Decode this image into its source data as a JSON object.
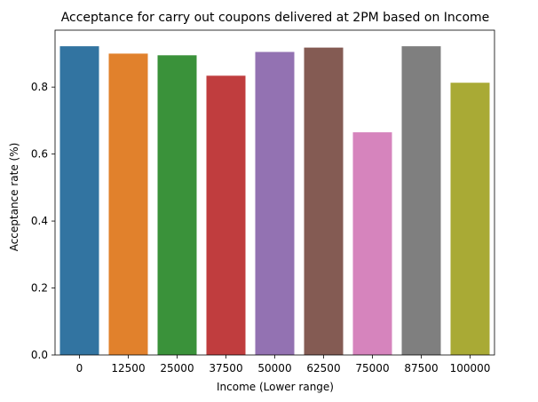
{
  "chart_data": {
    "type": "bar",
    "title": "Acceptance for carry out coupons delivered at 2PM based on Income",
    "xlabel": "Income (Lower range)",
    "ylabel": "Acceptance rate (%)",
    "categories": [
      "0",
      "12500",
      "25000",
      "37500",
      "50000",
      "62500",
      "75000",
      "87500",
      "100000"
    ],
    "values": [
      0.922,
      0.9,
      0.895,
      0.834,
      0.905,
      0.918,
      0.665,
      0.922,
      0.813
    ],
    "colors": [
      "#3274a1",
      "#e1812c",
      "#3a923a",
      "#c03d3e",
      "#9372b2",
      "#845b53",
      "#d684bd",
      "#7f7f7f",
      "#a9aa35"
    ],
    "ylim": [
      0,
      0.97
    ],
    "yticks": [
      0.0,
      0.2,
      0.4,
      0.6,
      0.8
    ],
    "ytick_labels": [
      "0.0",
      "0.2",
      "0.4",
      "0.6",
      "0.8"
    ],
    "grid": false,
    "legend": "none"
  }
}
